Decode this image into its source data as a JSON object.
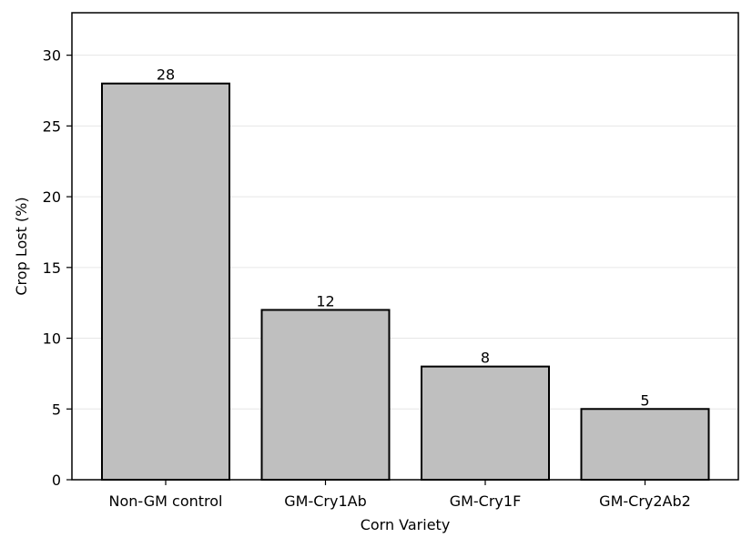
{
  "chart_data": {
    "type": "bar",
    "categories": [
      "Non-GM control",
      "GM-Cry1Ab",
      "GM-Cry1F",
      "GM-Cry2Ab2"
    ],
    "values": [
      28,
      12,
      8,
      5
    ],
    "data_labels": [
      "28",
      "12",
      "8",
      "5"
    ],
    "xlabel": "Corn Variety",
    "ylabel": "Crop Lost (%)",
    "ylim": [
      0,
      33
    ],
    "yticks": [
      0,
      5,
      10,
      15,
      20,
      25,
      30
    ],
    "grid": "horizontal",
    "bar_color": "#bfbfbf",
    "edge_color": "#000000",
    "grid_color": "#e6e6e6"
  }
}
